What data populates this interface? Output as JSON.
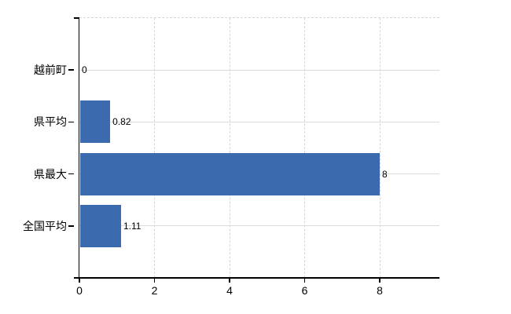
{
  "chart_data": {
    "type": "bar",
    "orientation": "horizontal",
    "title": "",
    "xlabel": "",
    "ylabel": "",
    "categories": [
      "越前町",
      "県平均",
      "県最大",
      "全国平均"
    ],
    "values": [
      0,
      0.82,
      8,
      1.11
    ],
    "value_labels": [
      "0",
      "0.82",
      "8",
      "1.11"
    ],
    "x_ticks": [
      0,
      2,
      4,
      6,
      8
    ],
    "x_tick_labels": [
      "0",
      "2",
      "4",
      "6",
      "8"
    ],
    "xlim": [
      0,
      9.6
    ],
    "grid": "on",
    "legend": "none"
  },
  "colors": {
    "bar": "#3c6aae",
    "axis": "#000000",
    "text": "#000000",
    "grid_horizontal": "#d9ddd6",
    "grid_vertical": "#d8d2da",
    "background": "#ffffff"
  }
}
